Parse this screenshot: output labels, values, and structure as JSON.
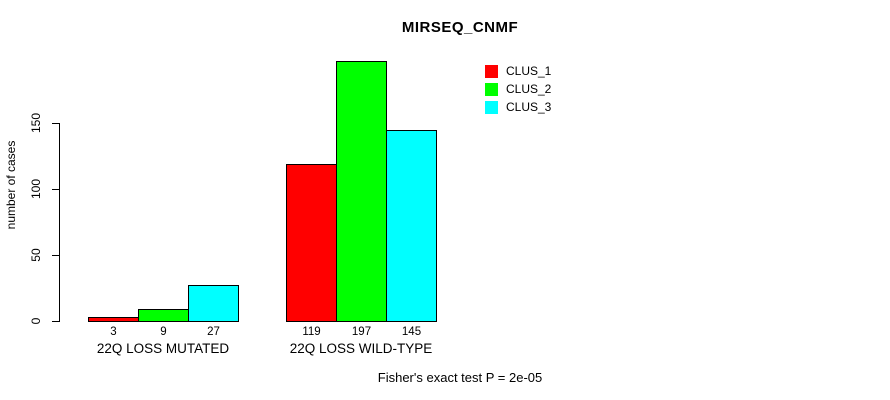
{
  "chart_data": {
    "type": "bar",
    "title": "MIRSEQ_CNMF",
    "xlabel": "",
    "ylabel": "number of cases",
    "categories": [
      "22Q LOSS MUTATED",
      "22Q LOSS WILD-TYPE"
    ],
    "series": [
      {
        "name": "CLUS_1",
        "color": "#ff0000",
        "values": [
          3,
          119
        ]
      },
      {
        "name": "CLUS_2",
        "color": "#00ff00",
        "values": [
          9,
          197
        ]
      },
      {
        "name": "CLUS_3",
        "color": "#00ffff",
        "values": [
          27,
          145
        ]
      }
    ],
    "yticks": [
      0,
      50,
      100,
      150
    ],
    "ylim": [
      0,
      150
    ],
    "grid": false,
    "show_bar_values": true,
    "legend_position": "top-right",
    "caption": "Fisher's exact test P = 2e-05",
    "colors": {
      "background": "#ffffff",
      "axis": "#000000",
      "bar_border": "#000000",
      "text": "#000000"
    }
  }
}
